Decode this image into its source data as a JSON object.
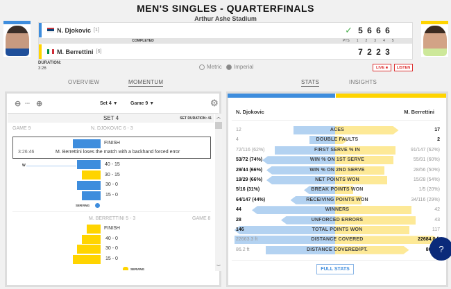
{
  "header": {
    "title": "MEN'S SINGLES - QUARTERFINALS",
    "venue": "Arthur Ashe Stadium",
    "status": "COMPLETED",
    "duration_label": "DURATION:",
    "duration": "3:26"
  },
  "players": [
    {
      "name": "N. Djokovic",
      "seed": "[1]",
      "color": "#3e8ddd",
      "scores": [
        "5",
        "6",
        "6",
        "6"
      ],
      "winner": true
    },
    {
      "name": "M. Berrettini",
      "seed": "[6]",
      "color": "#ffd400",
      "scores": [
        "7",
        "2",
        "2",
        "3"
      ]
    }
  ],
  "set_headers": [
    "PTS",
    "1",
    "2",
    "3",
    "4",
    "5"
  ],
  "units": {
    "metric": "Metric",
    "imperial": "Imperial",
    "selected": "Imperial"
  },
  "buttons": {
    "live": "LIVE",
    "listen": "LISTEN",
    "full_stats": "FULL STATS"
  },
  "tabs": [
    {
      "label": "OVERVIEW"
    },
    {
      "label": "MOMENTUM",
      "active": true
    },
    {
      "label": "STATS",
      "active": true
    },
    {
      "label": "INSIGHTS"
    }
  ],
  "momentum": {
    "set_select": "Set 4",
    "game_select": "Game 9",
    "zoom_level": "---",
    "set_title": "SET 4",
    "set_duration": "SET DURATION: 41",
    "game9": {
      "label": "GAME 9",
      "score": "N. DJOKOVIC 6 - 3",
      "finish": {
        "label": "FINISH",
        "time": "3:26:46",
        "text": "M. Berrettini loses the match with a backhand forced error"
      },
      "points": [
        {
          "score": "40 - 15",
          "player": "djokovic",
          "marker": "W"
        },
        {
          "score": "30 - 15",
          "player": "berrettini"
        },
        {
          "score": "30 - 0",
          "player": "djokovic"
        },
        {
          "score": "15 - 0",
          "player": "djokovic"
        }
      ],
      "serving": "SERVING"
    },
    "game8": {
      "label": "GAME 8",
      "score": "M. BERRETTINI 5 - 3",
      "points": [
        {
          "score": "FINISH"
        },
        {
          "score": "40 - 0"
        },
        {
          "score": "30 - 0"
        },
        {
          "score": "15 - 0"
        }
      ],
      "serving": "SERVING"
    }
  },
  "stats": {
    "left_name": "N. Djokovic",
    "right_name": "M. Berrettini",
    "rows": [
      {
        "label": "ACES",
        "left": "12",
        "right": "17",
        "left_fill": 0.4,
        "right_fill": 0.61,
        "leader": "right"
      },
      {
        "label": "DOUBLE FAULTS",
        "left": "4",
        "right": "2",
        "left_fill": 0.25,
        "right_fill": 0.12,
        "leader": "right"
      },
      {
        "label": "FIRST SERVE % IN",
        "left": "72/116 (62%)",
        "right": "91/147 (62%)",
        "left_fill": 0.58,
        "right_fill": 0.58,
        "leader": "none"
      },
      {
        "label": "WIN % ON 1ST SERVE",
        "left": "53/72 (74%)",
        "right": "55/91 (60%)",
        "left_fill": 0.7,
        "right_fill": 0.56,
        "leader": "left"
      },
      {
        "label": "WIN % ON 2ND SERVE",
        "left": "29/44 (66%)",
        "right": "28/56 (50%)",
        "left_fill": 0.66,
        "right_fill": 0.47,
        "leader": "left"
      },
      {
        "label": "NET POINTS WON",
        "left": "19/29 (66%)",
        "right": "15/28 (54%)",
        "left_fill": 0.66,
        "right_fill": 0.5,
        "leader": "left"
      },
      {
        "label": "BREAK POINTS WON",
        "left": "5/16 (31%)",
        "right": "1/5 (20%)",
        "left_fill": 0.3,
        "right_fill": 0.17,
        "leader": "left"
      },
      {
        "label": "RECEIVING POINTS WON",
        "left": "64/147 (44%)",
        "right": "34/116 (29%)",
        "left_fill": 0.43,
        "right_fill": 0.25,
        "leader": "left"
      },
      {
        "label": "WINNERS",
        "left": "44",
        "right": "42",
        "left_fill": 0.8,
        "right_fill": 0.73,
        "leader": "left"
      },
      {
        "label": "UNFORCED ERRORS",
        "left": "28",
        "right": "43",
        "left_fill": 0.52,
        "right_fill": 0.77,
        "leader": "left"
      },
      {
        "label": "TOTAL POINTS WON",
        "left": "146",
        "right": "117",
        "left_fill": 0.97,
        "right_fill": 0.71,
        "leader": "left"
      },
      {
        "label": "DISTANCE COVERED",
        "left": "22663.3 ft",
        "right": "22684.0 ft",
        "left_fill": 0.97,
        "right_fill": 1.0,
        "leader": "right"
      },
      {
        "label": "DISTANCE COVERED/PT.",
        "left": "86.2 ft",
        "right": "86.3 ft",
        "left_fill": 0.67,
        "right_fill": 0.71,
        "leader": "right"
      }
    ]
  },
  "colors": {
    "djokovic": "#3e8ddd",
    "berrettini": "#ffd400",
    "live": "#d33333",
    "chat": "#0b2a7a"
  }
}
